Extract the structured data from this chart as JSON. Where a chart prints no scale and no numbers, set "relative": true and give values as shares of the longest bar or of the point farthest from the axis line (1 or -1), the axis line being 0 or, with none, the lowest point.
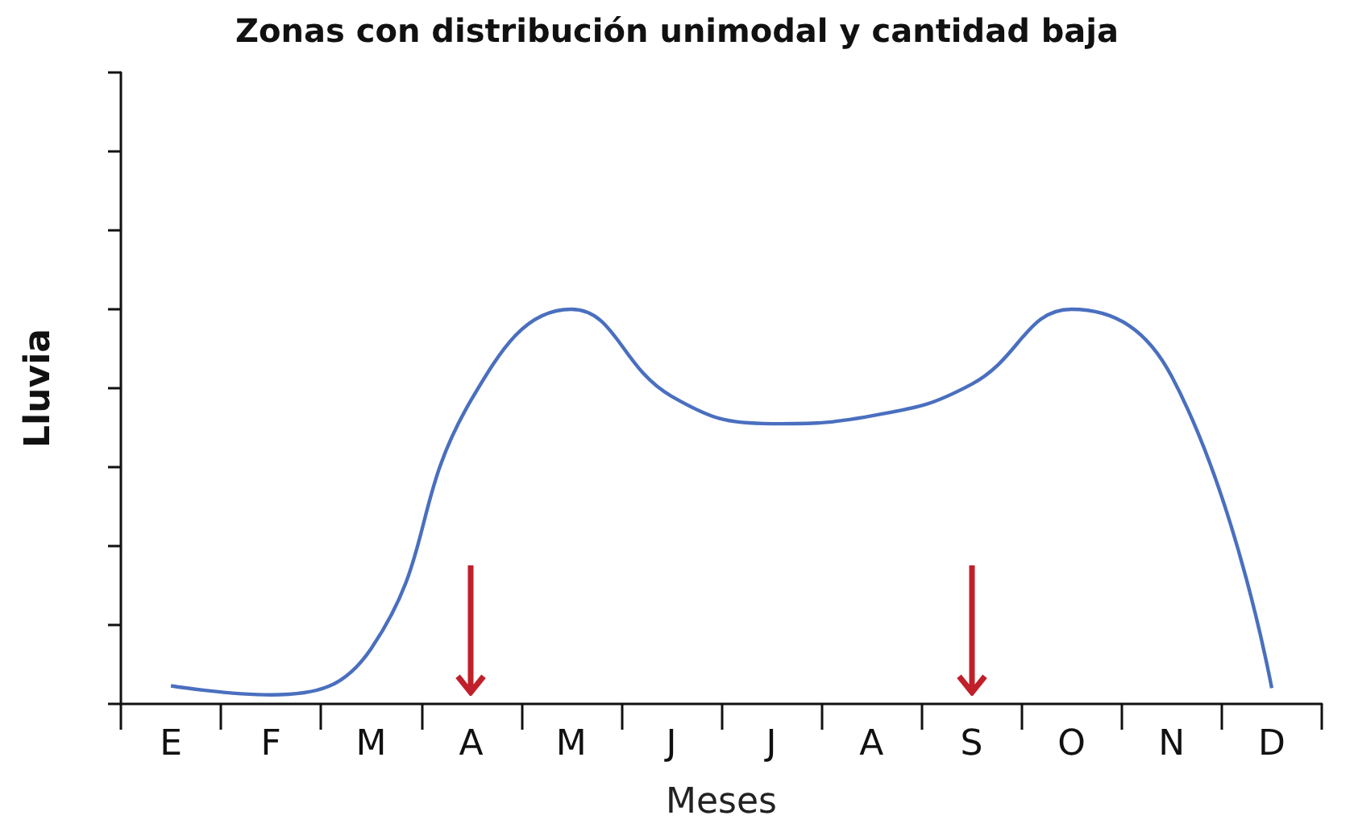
{
  "chart_data": {
    "type": "line",
    "title": "Zonas con distribución unimodal y cantidad baja",
    "xlabel": "Meses",
    "ylabel": "Lluvia",
    "relative": true,
    "categories": [
      "E",
      "F",
      "M",
      "A",
      "M",
      "J",
      "J",
      "A",
      "S",
      "O",
      "N",
      "D"
    ],
    "series": [
      {
        "color": "#4a6fbf",
        "values": [
          0.046,
          0.023,
          0.14,
          0.77,
          1.0,
          0.78,
          0.71,
          0.73,
          0.81,
          1.0,
          0.83,
          0.04
        ]
      }
    ],
    "marker": "none",
    "line_style": "solid"
  }
}
